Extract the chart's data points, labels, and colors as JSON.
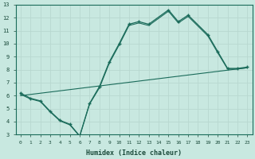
{
  "xlabel": "Humidex (Indice chaleur)",
  "bg_color": "#c8e8e0",
  "grid_color": "#b0d8d0",
  "line_color": "#1a6b5a",
  "xlim": [
    -0.5,
    23.5
  ],
  "ylim": [
    3,
    13
  ],
  "xticks": [
    0,
    1,
    2,
    3,
    4,
    5,
    6,
    7,
    8,
    9,
    10,
    11,
    12,
    13,
    14,
    15,
    16,
    17,
    18,
    19,
    20,
    21,
    22,
    23
  ],
  "yticks": [
    3,
    4,
    5,
    6,
    7,
    8,
    9,
    10,
    11,
    12,
    13
  ],
  "line1_x": [
    0,
    1,
    2,
    3,
    4,
    5,
    6,
    7,
    8,
    9,
    10,
    11,
    12,
    13,
    15,
    16,
    17,
    19,
    20,
    21,
    22,
    23
  ],
  "line1_y": [
    6.2,
    5.8,
    5.6,
    4.8,
    4.1,
    3.8,
    2.9,
    5.4,
    6.7,
    8.6,
    10.0,
    11.5,
    11.7,
    11.5,
    12.6,
    11.7,
    12.2,
    10.7,
    9.4,
    8.1,
    8.1,
    8.2
  ],
  "line2_x": [
    0,
    1,
    2,
    3,
    4,
    5,
    6,
    7,
    8,
    9,
    10,
    11,
    12,
    13,
    15,
    16,
    17,
    19,
    20,
    21,
    22,
    23
  ],
  "line2_y": [
    6.1,
    5.75,
    5.55,
    4.75,
    4.05,
    3.75,
    2.87,
    5.35,
    6.6,
    8.5,
    9.9,
    11.4,
    11.6,
    11.4,
    12.5,
    11.6,
    12.1,
    10.6,
    9.3,
    8.05,
    8.05,
    8.15
  ],
  "line3_x": [
    0,
    23
  ],
  "line3_y": [
    6.0,
    8.15
  ]
}
